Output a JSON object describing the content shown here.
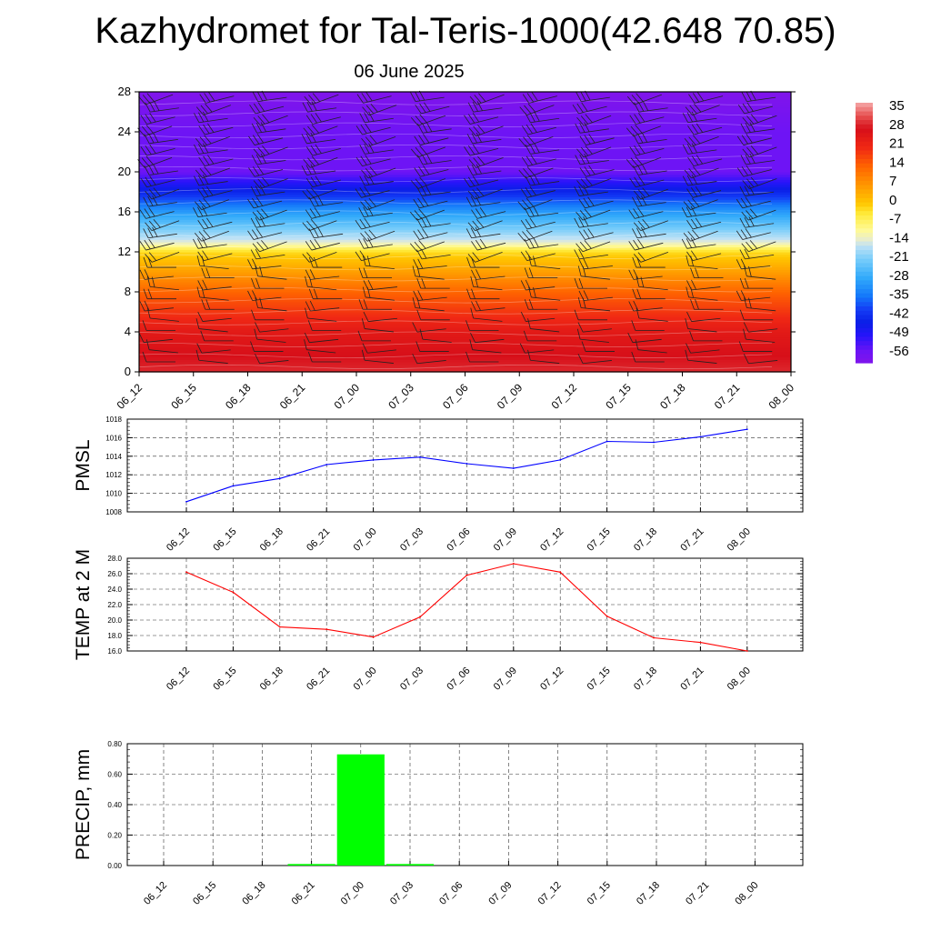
{
  "title": "Kazhydromet for Tal-Teris-1000(42.648 70.85)",
  "subtitle": "06 June 2025",
  "time_labels": [
    "06_12",
    "06_15",
    "06_18",
    "06_21",
    "07_00",
    "07_03",
    "07_06",
    "07_09",
    "07_12",
    "07_15",
    "07_18",
    "07_21",
    "08_00"
  ],
  "colors": {
    "pmsl_line": "#0000ff",
    "temp_line": "#ff0000",
    "precip_bar": "#00ff00",
    "grid": "#000000"
  },
  "chart_data": [
    {
      "type": "heatmap",
      "description_axis": "height",
      "y_ticks": [
        "0",
        "4",
        "8",
        "12",
        "16",
        "20",
        "24",
        "28"
      ],
      "ylim": [
        0,
        28
      ],
      "x": [
        "06_12",
        "06_15",
        "06_18",
        "06_21",
        "07_00",
        "07_03",
        "07_06",
        "07_09",
        "07_12",
        "07_15",
        "07_18",
        "07_21",
        "08_00"
      ],
      "colorbar_labels": [
        "35",
        "28",
        "21",
        "14",
        "7",
        "0",
        "-7",
        "-14",
        "-21",
        "-28",
        "-35",
        "-42",
        "-49",
        "-56"
      ],
      "colorbar_range": [
        -60,
        38
      ],
      "temperature_profile": [
        {
          "level": 0,
          "value": 30
        },
        {
          "level": 4,
          "value": 25
        },
        {
          "level": 8,
          "value": 14
        },
        {
          "level": 12,
          "value": -2
        },
        {
          "level": 13,
          "value": -14
        },
        {
          "level": 16,
          "value": -30
        },
        {
          "level": 19,
          "value": -50
        },
        {
          "level": 20,
          "value": -56
        },
        {
          "level": 24,
          "value": -56
        },
        {
          "level": 28,
          "value": -60
        }
      ],
      "wind_barbs": true
    },
    {
      "type": "line",
      "ylabel": "PMSL",
      "x": [
        "06_12",
        "06_15",
        "06_18",
        "06_21",
        "07_00",
        "07_03",
        "07_06",
        "07_09",
        "07_12",
        "07_15",
        "07_18",
        "07_21",
        "08_00"
      ],
      "y_ticks": [
        "1008",
        "1010",
        "1012",
        "1014",
        "1016",
        "1018"
      ],
      "ylim": [
        1008,
        1018
      ],
      "series": [
        {
          "values": [
            1009.1,
            1010.8,
            1011.6,
            1013.1,
            1013.6,
            1013.9,
            1013.2,
            1012.7,
            1013.6,
            1015.6,
            1015.5,
            1016.1,
            1016.9
          ]
        }
      ],
      "grid": true
    },
    {
      "type": "line",
      "ylabel": "TEMP at 2 M",
      "x": [
        "06_12",
        "06_15",
        "06_18",
        "06_21",
        "07_00",
        "07_03",
        "07_06",
        "07_09",
        "07_12",
        "07_15",
        "07_18",
        "07_21",
        "08_00"
      ],
      "y_ticks": [
        "16.0",
        "18.0",
        "20.0",
        "22.0",
        "24.0",
        "26.0",
        "28.0"
      ],
      "ylim": [
        16,
        28
      ],
      "series": [
        {
          "values": [
            26.2,
            23.6,
            19.1,
            18.8,
            17.8,
            20.4,
            25.8,
            27.3,
            26.2,
            20.5,
            17.7,
            17.1,
            16.0
          ]
        }
      ],
      "grid": true
    },
    {
      "type": "bar",
      "ylabel": "PRECIP, mm",
      "categories": [
        "06_12",
        "06_15",
        "06_18",
        "06_21",
        "07_00",
        "07_03",
        "07_06",
        "07_09",
        "07_12",
        "07_15",
        "07_18",
        "07_21",
        "08_00"
      ],
      "y_ticks": [
        "0.00",
        "0.20",
        "0.40",
        "0.60",
        "0.80"
      ],
      "ylim": [
        0,
        0.8
      ],
      "series": [
        {
          "values": [
            0,
            0,
            0,
            0.01,
            0.73,
            0.01,
            0,
            0,
            0,
            0,
            0,
            0,
            0
          ]
        }
      ],
      "grid": true
    }
  ]
}
